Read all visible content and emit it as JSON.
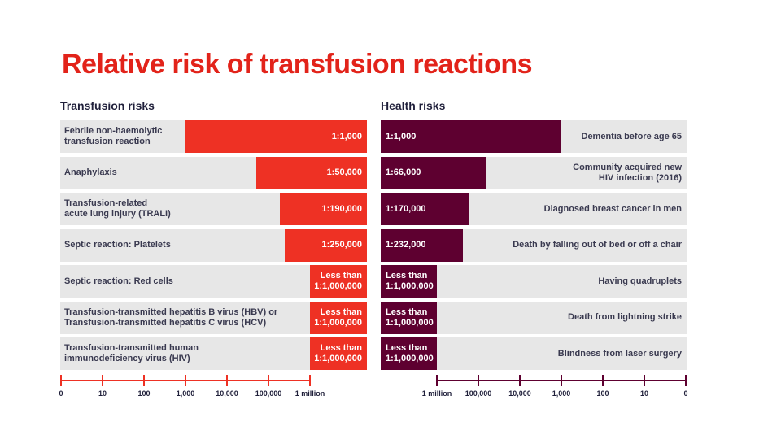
{
  "title": "Relative risk of transfusion reactions",
  "colors": {
    "title": "#e2231a",
    "left_bar": "#ee3124",
    "right_bar": "#5e0030",
    "row_bg": "#e7e7e7"
  },
  "chart_data": [
    {
      "type": "bar",
      "title": "Transfusion risks",
      "orientation": "horizontal",
      "scale": "log",
      "axis_ticks": [
        "0",
        "10",
        "100",
        "1,000",
        "10,000",
        "100,000",
        "1 million"
      ],
      "categories": [
        "Febrile non-haemolytic transfusion reaction",
        "Anaphylaxis",
        "Transfusion-related acute lung injury (TRALI)",
        "Septic reaction: Platelets",
        "Septic reaction: Red cells",
        "Transfusion-transmitted hepatitis B virus (HBV) or Transfusion-transmitted hepatitis C virus (HCV)",
        "Transfusion-transmitted human immunodeficiency virus (HIV)"
      ],
      "labels_lines": [
        [
          "Febrile non-haemolytic",
          "transfusion reaction"
        ],
        [
          "Anaphylaxis"
        ],
        [
          "Transfusion-related",
          "acute lung injury (TRALI)"
        ],
        [
          "Septic reaction: Platelets"
        ],
        [
          "Septic reaction: Red cells"
        ],
        [
          "Transfusion-transmitted hepatitis B virus (HBV) or",
          "Transfusion-transmitted hepatitis C virus (HCV)"
        ],
        [
          "Transfusion-transmitted human",
          "immunodeficiency virus (HIV)"
        ]
      ],
      "value_labels": [
        [
          "1:1,000"
        ],
        [
          "1:50,000"
        ],
        [
          "1:190,000"
        ],
        [
          "1:250,000"
        ],
        [
          "Less than",
          "1:1,000,000"
        ],
        [
          "Less than",
          "1:1,000,000"
        ],
        [
          "Less than",
          "1:1,000,000"
        ]
      ],
      "values": [
        1000,
        50000,
        190000,
        250000,
        1000000,
        1000000,
        1000000
      ]
    },
    {
      "type": "bar",
      "title": "Health risks",
      "orientation": "horizontal",
      "scale": "log",
      "axis_ticks": [
        "1 million",
        "100,000",
        "10,000",
        "1,000",
        "100",
        "10",
        "0"
      ],
      "categories": [
        "Dementia before age 65",
        "Community acquired new HIV infection (2016)",
        "Diagnosed breast cancer in men",
        "Death by falling out of bed or off a chair",
        "Having quadruplets",
        "Death from lightning strike",
        "Blindness from laser surgery"
      ],
      "labels_lines": [
        [
          "Dementia before age 65"
        ],
        [
          "Community acquired new",
          "HIV infection (2016)"
        ],
        [
          "Diagnosed breast cancer in men"
        ],
        [
          "Death by falling out of bed or off a chair"
        ],
        [
          "Having quadruplets"
        ],
        [
          "Death from lightning strike"
        ],
        [
          "Blindness from laser surgery"
        ]
      ],
      "value_labels": [
        [
          "1:1,000"
        ],
        [
          "1:66,000"
        ],
        [
          "1:170,000"
        ],
        [
          "1:232,000"
        ],
        [
          "Less than",
          "1:1,000,000"
        ],
        [
          "Less than",
          "1:1,000,000"
        ],
        [
          "Less than",
          "1:1,000,000"
        ]
      ],
      "values": [
        1000,
        66000,
        170000,
        232000,
        1000000,
        1000000,
        1000000
      ]
    }
  ]
}
